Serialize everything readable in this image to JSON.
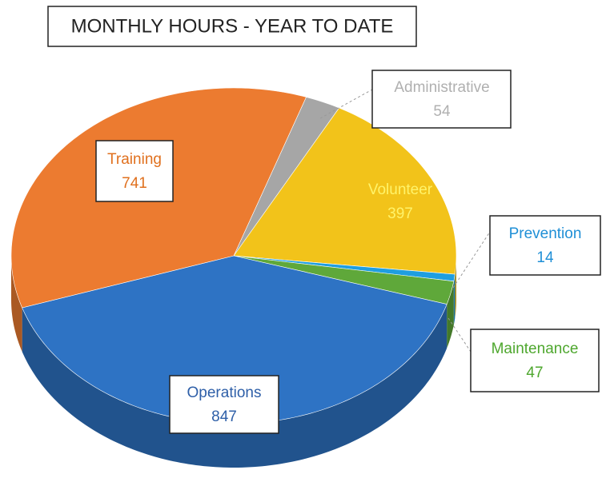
{
  "chart_data": {
    "type": "pie",
    "title": "MONTHLY HOURS - YEAR TO DATE",
    "categories": [
      "Administrative",
      "Volunteer",
      "Prevention",
      "Maintenance",
      "Operations",
      "Training"
    ],
    "values": [
      54,
      397,
      14,
      47,
      847,
      741
    ],
    "colors": [
      "#a6a6a6",
      "#f2c31a",
      "#1f9ee0",
      "#5fa83a",
      "#2e73c4",
      "#ec7b30"
    ]
  }
}
